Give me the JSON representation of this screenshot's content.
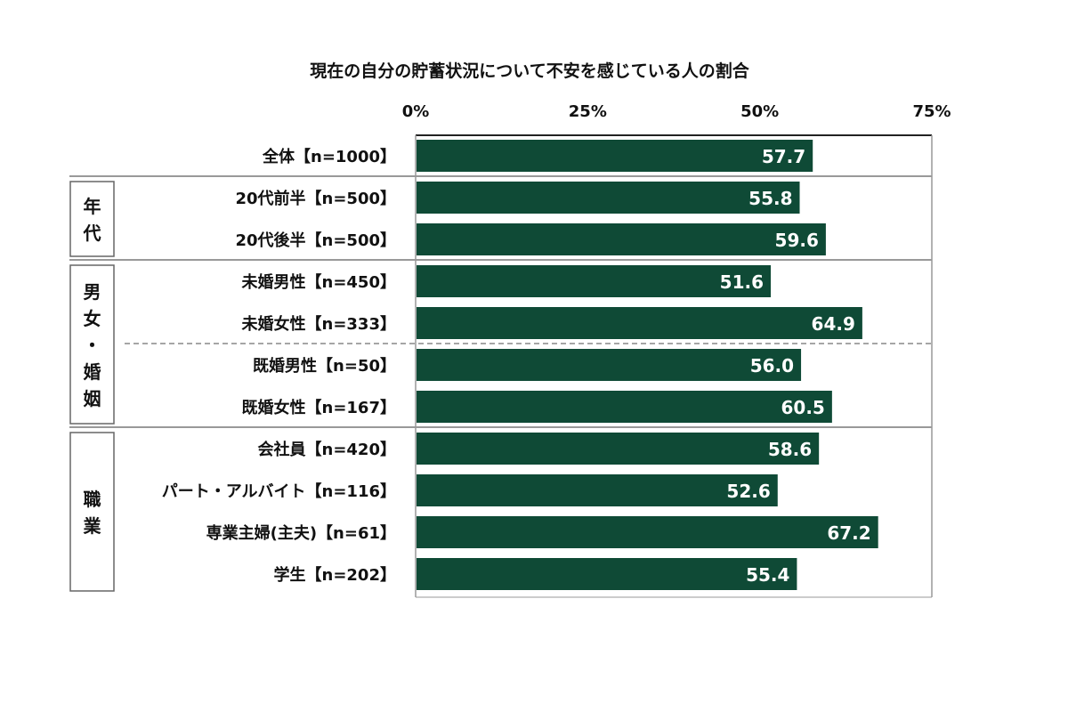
{
  "chart_data": {
    "type": "bar",
    "orientation": "horizontal",
    "title": "現在の自分の貯蓄状況について不安を感じている人の割合",
    "xlim": [
      0,
      75
    ],
    "x_ticks": [
      "0%",
      "25%",
      "50%",
      "75%"
    ],
    "x_tick_values": [
      0,
      25,
      50,
      75
    ],
    "categories": [
      "全体【n=1000】",
      "20代前半【n=500】",
      "20代後半【n=500】",
      "未婚男性【n=450】",
      "未婚女性【n=333】",
      "既婚男性【n=50】",
      "既婚女性【n=167】",
      "会社員【n=420】",
      "パート・アルバイト【n=116】",
      "専業主婦(主夫)【n=61】",
      "学生【n=202】"
    ],
    "values": [
      57.7,
      55.8,
      59.6,
      51.6,
      64.9,
      56.0,
      60.5,
      58.6,
      52.6,
      67.2,
      55.4
    ],
    "value_labels": [
      "57.7",
      "55.8",
      "59.6",
      "51.6",
      "64.9",
      "56.0",
      "60.5",
      "58.6",
      "52.6",
      "67.2",
      "55.4"
    ],
    "groups": [
      {
        "label": "年代",
        "chars": [
          "年",
          "代"
        ],
        "from": 1,
        "to": 2
      },
      {
        "label": "男女・婚姻",
        "chars": [
          "男",
          "女",
          "・",
          "婚",
          "姻"
        ],
        "from": 3,
        "to": 6
      },
      {
        "label": "職業",
        "chars": [
          "職",
          "業"
        ],
        "from": 7,
        "to": 10
      }
    ],
    "bar_color": "#0f4a36",
    "grid": false
  }
}
